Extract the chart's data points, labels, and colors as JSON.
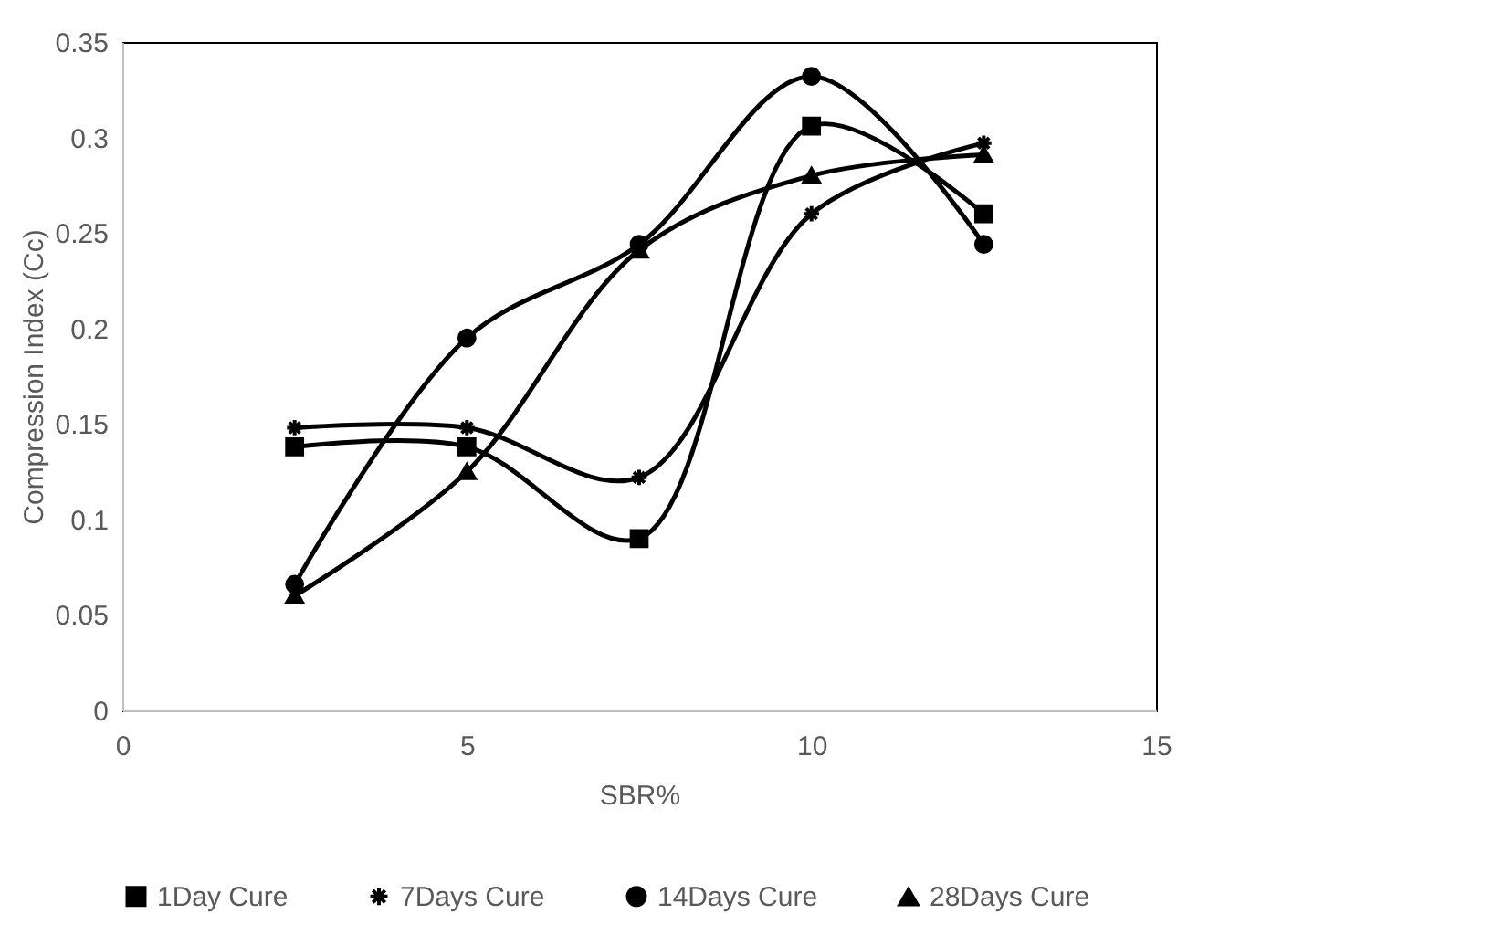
{
  "chart_data": {
    "type": "line",
    "xlabel": "SBR%",
    "ylabel": "Compression Index (Cc)",
    "x": [
      2.5,
      5,
      7.5,
      10,
      12.5
    ],
    "series": [
      {
        "name": "1Day Cure",
        "color": "#000000",
        "marker": "square",
        "values": [
          0.138,
          0.138,
          0.09,
          0.306,
          0.26
        ]
      },
      {
        "name": "7Days Cure",
        "color": "#000000",
        "marker": "cross",
        "values": [
          0.148,
          0.148,
          0.122,
          0.26,
          0.297
        ]
      },
      {
        "name": "14Days Cure",
        "color": "#000000",
        "marker": "circle",
        "values": [
          0.066,
          0.195,
          0.244,
          0.332,
          0.244
        ]
      },
      {
        "name": "28Days Cure",
        "color": "#000000",
        "marker": "triangle",
        "values": [
          0.06,
          0.125,
          0.241,
          0.28,
          0.291
        ]
      }
    ],
    "xlim": [
      0,
      15
    ],
    "xticks": [
      0,
      5,
      10,
      15
    ],
    "ylim": [
      0,
      0.35
    ],
    "yticks": [
      0,
      0.05,
      0.1,
      0.15,
      0.2,
      0.25,
      0.3,
      0.35
    ],
    "grid": false,
    "legend": "bottom"
  }
}
